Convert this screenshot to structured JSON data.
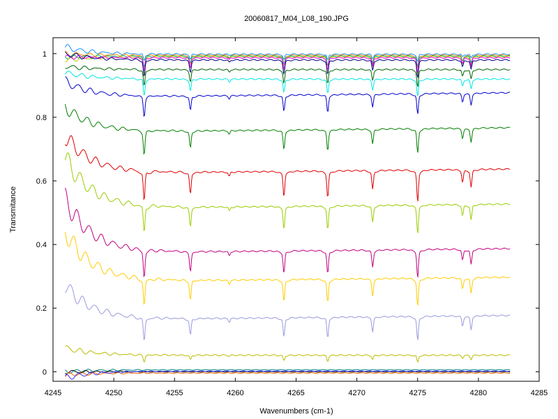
{
  "chart_data": {
    "type": "line",
    "title": "20060817_M04_L08_190.JPG",
    "xlabel": "Wavenumbers (cm-1)",
    "ylabel": "Transmitance",
    "xlim": [
      4245,
      4285
    ],
    "ylim": [
      -0.03,
      1.05
    ],
    "xticks": [
      "4245",
      "4250",
      "4255",
      "4260",
      "4265",
      "4270",
      "4275",
      "4280",
      "4285"
    ],
    "yticks": [
      "0",
      "0.2",
      "0.4",
      "0.6",
      "0.8",
      "1"
    ],
    "x_start": 4246.0,
    "x_end": 4282.6,
    "grid": false,
    "legend": "none",
    "absorption_lines": [
      {
        "x": 4252.5,
        "depth": 1.0
      },
      {
        "x": 4256.3,
        "depth": 0.7
      },
      {
        "x": 4259.5,
        "depth": 0.15
      },
      {
        "x": 4264.0,
        "depth": 0.8
      },
      {
        "x": 4267.6,
        "depth": 0.85
      },
      {
        "x": 4271.3,
        "depth": 0.6
      },
      {
        "x": 4275.0,
        "depth": 1.0
      },
      {
        "x": 4278.7,
        "depth": 0.4
      },
      {
        "x": 4279.4,
        "depth": 0.55
      }
    ],
    "series": [
      {
        "color": "#1e90ff",
        "baseline": 0.998,
        "start": 1.02,
        "depth": 0.02
      },
      {
        "color": "#ff8c00",
        "baseline": 0.995,
        "start": 1.0,
        "depth": 0.04
      },
      {
        "color": "#00aa66",
        "baseline": 0.992,
        "start": 0.99,
        "depth": 0.03
      },
      {
        "color": "#c9c900",
        "baseline": 0.99,
        "start": 0.98,
        "depth": 0.05
      },
      {
        "color": "#ff00ff",
        "baseline": 0.987,
        "start": 0.99,
        "depth": 0.04
      },
      {
        "color": "#000080",
        "baseline": 0.98,
        "start": 1.0,
        "depth": 0.05
      },
      {
        "color": "#006400",
        "baseline": 0.95,
        "start": 0.96,
        "depth": 0.05
      },
      {
        "color": "#00e5e5",
        "baseline": 0.92,
        "start": 0.94,
        "depth": 0.05
      },
      {
        "color": "#0000cc",
        "baseline": 0.87,
        "start": 0.92,
        "depth": 0.06
      },
      {
        "color": "#007f00",
        "baseline": 0.76,
        "start": 0.84,
        "depth": 0.07
      },
      {
        "color": "#dd0000",
        "baseline": 0.63,
        "start": 0.75,
        "depth": 0.09
      },
      {
        "color": "#99cc00",
        "baseline": 0.52,
        "start": 0.68,
        "depth": 0.08
      },
      {
        "color": "#c0007f",
        "baseline": 0.38,
        "start": 0.55,
        "depth": 0.08
      },
      {
        "color": "#ffcc00",
        "baseline": 0.29,
        "start": 0.45,
        "depth": 0.08
      },
      {
        "color": "#9999dd",
        "baseline": 0.17,
        "start": 0.28,
        "depth": 0.07
      },
      {
        "color": "#bbbb00",
        "baseline": 0.052,
        "start": 0.075,
        "depth": 0.02
      },
      {
        "color": "#008080",
        "baseline": 0.006,
        "start": 0.0,
        "depth": 0.0
      },
      {
        "color": "#000000",
        "baseline": 0.0,
        "start": 0.0,
        "depth": 0.0
      },
      {
        "color": "#ff6600",
        "baseline": -0.004,
        "start": -0.01,
        "depth": 0.0
      },
      {
        "color": "#3333ff",
        "baseline": 0.002,
        "start": -0.02,
        "depth": 0.0
      }
    ]
  }
}
